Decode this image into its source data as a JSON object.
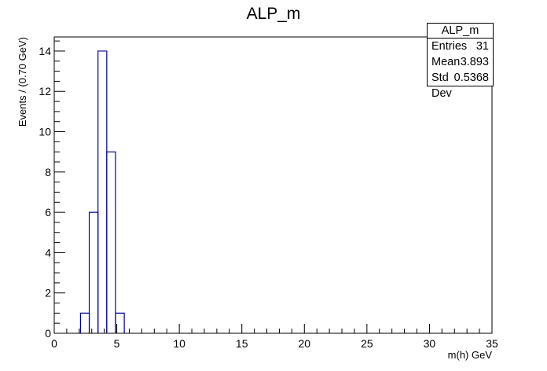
{
  "chart_data": {
    "type": "histogram",
    "title": "ALP_m",
    "xlabel": "m(h) GeV",
    "ylabel": "Events / (0.70 GeV)",
    "xlim": [
      0,
      35
    ],
    "ylim": [
      0,
      14.7
    ],
    "bin_width": 0.7,
    "bins": [
      {
        "x_low": 2.1,
        "x_high": 2.8,
        "count": 1
      },
      {
        "x_low": 2.8,
        "x_high": 3.5,
        "count": 6
      },
      {
        "x_low": 3.5,
        "x_high": 4.2,
        "count": 14
      },
      {
        "x_low": 4.2,
        "x_high": 4.9,
        "count": 9
      },
      {
        "x_low": 4.9,
        "x_high": 5.6,
        "count": 1
      }
    ],
    "x_ticks": [
      0,
      5,
      10,
      15,
      20,
      25,
      30,
      35
    ],
    "y_ticks": [
      0,
      2,
      4,
      6,
      8,
      10,
      12,
      14
    ],
    "line_color": "#000099",
    "stats_box": {
      "name": "ALP_m",
      "rows": [
        {
          "label": "Entries",
          "value": "31"
        },
        {
          "label": "Mean",
          "value": "3.893"
        },
        {
          "label": "Std Dev",
          "value": "0.5368"
        }
      ]
    }
  }
}
